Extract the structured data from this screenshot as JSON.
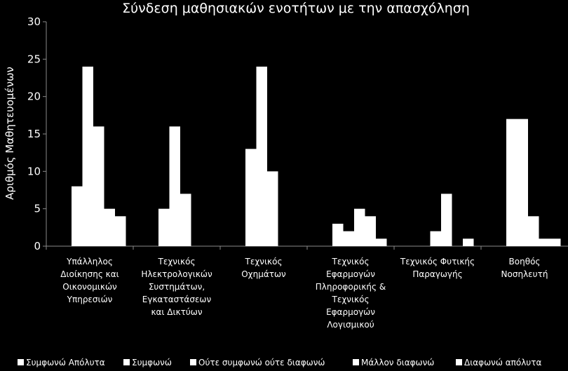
{
  "chart_data": {
    "type": "bar",
    "title": "Σύνδεση μαθησιακών ενοτήτων με την απασχόληση",
    "ylabel": "Αριθμός Μαθητευομένων",
    "xlabel": "",
    "ylim": [
      0,
      30
    ],
    "yticks": [
      0,
      5,
      10,
      15,
      20,
      25,
      30
    ],
    "grid": false,
    "legend_position": "bottom",
    "bar_color": "#ffffff",
    "background": "#000000",
    "categories": [
      [
        "Υπάλληλος",
        "Διοίκησης και",
        "Οικονομικών",
        "Υπηρεσιών"
      ],
      [
        "Τεχνικός",
        "Ηλεκτρολογικών",
        "Συστημάτων,",
        "Εγκαταστάσεων",
        "και Δικτύων"
      ],
      [
        "Τεχνικός",
        "Οχημάτων"
      ],
      [
        "Τεχνικός",
        "Εφαρμογών",
        "Πληροφορικής &",
        "Τεχνικός",
        "Εφαρμογών",
        "Λογισμικού"
      ],
      [
        "Τεχνικός Φυτικής",
        "Παραγωγής"
      ],
      [
        "Βοηθός",
        "Νοσηλευτή"
      ]
    ],
    "series": [
      {
        "name": "Συμφωνώ Απόλυτα",
        "values": [
          8,
          5,
          13,
          3,
          0,
          17
        ]
      },
      {
        "name": "Συμφωνώ",
        "values": [
          24,
          16,
          24,
          2,
          2,
          17
        ]
      },
      {
        "name": "Ούτε συμφωνώ ούτε διαφωνώ",
        "values": [
          16,
          7,
          10,
          5,
          7,
          4
        ]
      },
      {
        "name": "Μάλλον διαφωνώ",
        "values": [
          5,
          0,
          0,
          4,
          0,
          1
        ]
      },
      {
        "name": "Διαφωνώ απόλυτα",
        "values": [
          4,
          0,
          0,
          1,
          1,
          1
        ]
      }
    ]
  }
}
